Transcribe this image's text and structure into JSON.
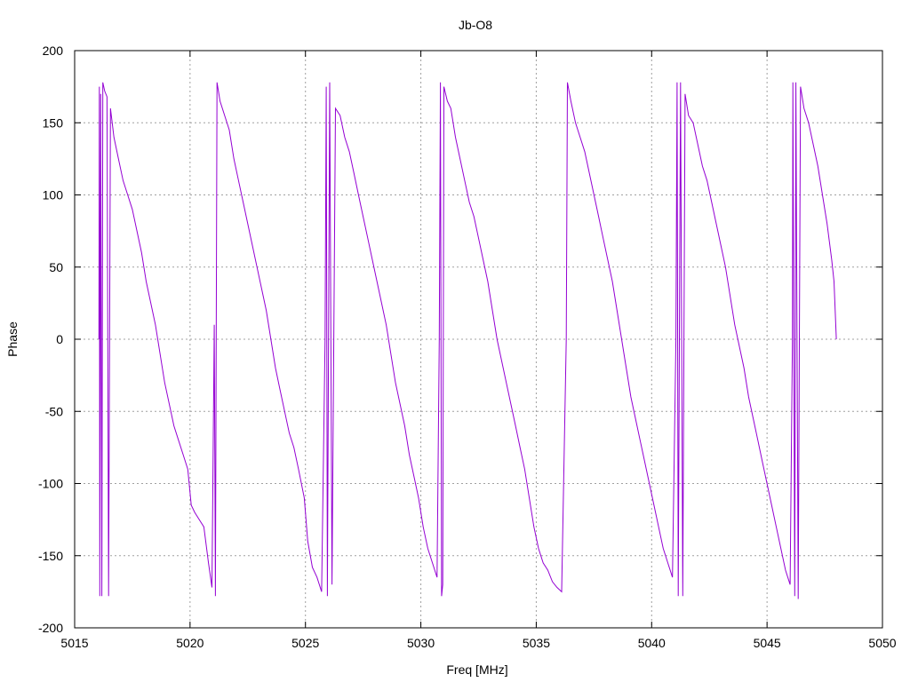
{
  "colors": {
    "series": "#9400d3",
    "grid": "#a0a0a0",
    "axis": "#000000",
    "background": "#ffffff"
  },
  "chart_data": {
    "type": "line",
    "title": "Jb-O8",
    "xlabel": "Freq [MHz]",
    "ylabel": "Phase",
    "xlim": [
      5015,
      5050
    ],
    "ylim": [
      -200,
      200
    ],
    "xticks": [
      "5015",
      "5020",
      "5025",
      "5030",
      "5035",
      "5040",
      "5045",
      "5050"
    ],
    "yticks": [
      "200",
      "150",
      "100",
      "50",
      "0",
      "-50",
      "-100",
      "-150",
      "-200"
    ],
    "grid": true,
    "legend": "none",
    "series": [
      {
        "color": "#9400d3",
        "points": [
          [
            5016.05,
            0
          ],
          [
            5016.07,
            175
          ],
          [
            5016.09,
            -178
          ],
          [
            5016.13,
            170
          ],
          [
            5016.18,
            -178
          ],
          [
            5016.22,
            178
          ],
          [
            5016.3,
            172
          ],
          [
            5016.4,
            168
          ],
          [
            5016.47,
            -178
          ],
          [
            5016.55,
            160
          ],
          [
            5016.7,
            140
          ],
          [
            5016.9,
            125
          ],
          [
            5017.1,
            110
          ],
          [
            5017.3,
            100
          ],
          [
            5017.5,
            90
          ],
          [
            5017.7,
            75
          ],
          [
            5017.9,
            60
          ],
          [
            5018.1,
            40
          ],
          [
            5018.3,
            25
          ],
          [
            5018.5,
            10
          ],
          [
            5018.7,
            -10
          ],
          [
            5018.9,
            -30
          ],
          [
            5019.1,
            -45
          ],
          [
            5019.3,
            -60
          ],
          [
            5019.5,
            -70
          ],
          [
            5019.7,
            -80
          ],
          [
            5019.9,
            -90
          ],
          [
            5020.05,
            -115
          ],
          [
            5020.2,
            -120
          ],
          [
            5020.4,
            -125
          ],
          [
            5020.6,
            -130
          ],
          [
            5020.8,
            -155
          ],
          [
            5020.95,
            -172
          ],
          [
            5021.05,
            10
          ],
          [
            5021.1,
            -178
          ],
          [
            5021.17,
            178
          ],
          [
            5021.3,
            165
          ],
          [
            5021.5,
            155
          ],
          [
            5021.7,
            145
          ],
          [
            5021.9,
            125
          ],
          [
            5022.1,
            110
          ],
          [
            5022.3,
            95
          ],
          [
            5022.5,
            80
          ],
          [
            5022.7,
            65
          ],
          [
            5022.9,
            50
          ],
          [
            5023.1,
            35
          ],
          [
            5023.3,
            20
          ],
          [
            5023.5,
            0
          ],
          [
            5023.7,
            -20
          ],
          [
            5023.9,
            -35
          ],
          [
            5024.1,
            -50
          ],
          [
            5024.3,
            -65
          ],
          [
            5024.5,
            -75
          ],
          [
            5024.7,
            -90
          ],
          [
            5024.95,
            -110
          ],
          [
            5025.1,
            -140
          ],
          [
            5025.3,
            -158
          ],
          [
            5025.5,
            -165
          ],
          [
            5025.7,
            -175
          ],
          [
            5025.85,
            0
          ],
          [
            5025.9,
            175
          ],
          [
            5025.95,
            -178
          ],
          [
            5026.05,
            178
          ],
          [
            5026.15,
            -170
          ],
          [
            5026.3,
            160
          ],
          [
            5026.5,
            155
          ],
          [
            5026.7,
            140
          ],
          [
            5026.9,
            130
          ],
          [
            5027.1,
            115
          ],
          [
            5027.3,
            100
          ],
          [
            5027.5,
            85
          ],
          [
            5027.7,
            70
          ],
          [
            5027.9,
            55
          ],
          [
            5028.1,
            40
          ],
          [
            5028.3,
            25
          ],
          [
            5028.5,
            10
          ],
          [
            5028.7,
            -10
          ],
          [
            5028.9,
            -30
          ],
          [
            5029.1,
            -45
          ],
          [
            5029.3,
            -60
          ],
          [
            5029.5,
            -80
          ],
          [
            5029.7,
            -95
          ],
          [
            5029.9,
            -110
          ],
          [
            5030.1,
            -130
          ],
          [
            5030.3,
            -145
          ],
          [
            5030.5,
            -155
          ],
          [
            5030.7,
            -165
          ],
          [
            5030.8,
            0
          ],
          [
            5030.85,
            178
          ],
          [
            5030.9,
            -178
          ],
          [
            5030.95,
            -170
          ],
          [
            5031.0,
            175
          ],
          [
            5031.15,
            165
          ],
          [
            5031.3,
            160
          ],
          [
            5031.5,
            140
          ],
          [
            5031.7,
            125
          ],
          [
            5031.9,
            110
          ],
          [
            5032.1,
            95
          ],
          [
            5032.3,
            85
          ],
          [
            5032.5,
            70
          ],
          [
            5032.7,
            55
          ],
          [
            5032.9,
            40
          ],
          [
            5033.1,
            20
          ],
          [
            5033.3,
            0
          ],
          [
            5033.5,
            -15
          ],
          [
            5033.7,
            -30
          ],
          [
            5033.9,
            -45
          ],
          [
            5034.1,
            -60
          ],
          [
            5034.3,
            -75
          ],
          [
            5034.5,
            -90
          ],
          [
            5034.7,
            -110
          ],
          [
            5034.9,
            -130
          ],
          [
            5035.1,
            -145
          ],
          [
            5035.3,
            -155
          ],
          [
            5035.5,
            -160
          ],
          [
            5035.7,
            -168
          ],
          [
            5035.9,
            -172
          ],
          [
            5036.1,
            -175
          ],
          [
            5036.3,
            0
          ],
          [
            5036.35,
            178
          ],
          [
            5036.5,
            165
          ],
          [
            5036.7,
            150
          ],
          [
            5036.9,
            140
          ],
          [
            5037.1,
            130
          ],
          [
            5037.3,
            115
          ],
          [
            5037.5,
            100
          ],
          [
            5037.7,
            85
          ],
          [
            5037.9,
            70
          ],
          [
            5038.1,
            55
          ],
          [
            5038.3,
            40
          ],
          [
            5038.5,
            20
          ],
          [
            5038.7,
            0
          ],
          [
            5038.9,
            -20
          ],
          [
            5039.1,
            -40
          ],
          [
            5039.3,
            -55
          ],
          [
            5039.5,
            -70
          ],
          [
            5039.7,
            -85
          ],
          [
            5039.9,
            -100
          ],
          [
            5040.1,
            -115
          ],
          [
            5040.3,
            -130
          ],
          [
            5040.5,
            -145
          ],
          [
            5040.7,
            -155
          ],
          [
            5040.9,
            -165
          ],
          [
            5041.05,
            0
          ],
          [
            5041.1,
            178
          ],
          [
            5041.15,
            -178
          ],
          [
            5041.25,
            178
          ],
          [
            5041.35,
            -178
          ],
          [
            5041.45,
            170
          ],
          [
            5041.6,
            155
          ],
          [
            5041.8,
            150
          ],
          [
            5042.0,
            135
          ],
          [
            5042.2,
            120
          ],
          [
            5042.4,
            110
          ],
          [
            5042.6,
            95
          ],
          [
            5042.8,
            80
          ],
          [
            5043.0,
            65
          ],
          [
            5043.2,
            50
          ],
          [
            5043.4,
            30
          ],
          [
            5043.6,
            10
          ],
          [
            5043.8,
            -5
          ],
          [
            5044.0,
            -20
          ],
          [
            5044.2,
            -40
          ],
          [
            5044.4,
            -55
          ],
          [
            5044.6,
            -70
          ],
          [
            5044.8,
            -85
          ],
          [
            5045.0,
            -100
          ],
          [
            5045.2,
            -115
          ],
          [
            5045.4,
            -130
          ],
          [
            5045.6,
            -145
          ],
          [
            5045.8,
            -160
          ],
          [
            5046.0,
            -170
          ],
          [
            5046.1,
            0
          ],
          [
            5046.12,
            178
          ],
          [
            5046.2,
            -178
          ],
          [
            5046.25,
            178
          ],
          [
            5046.35,
            -180
          ],
          [
            5046.45,
            175
          ],
          [
            5046.6,
            160
          ],
          [
            5046.8,
            150
          ],
          [
            5047.0,
            135
          ],
          [
            5047.2,
            120
          ],
          [
            5047.4,
            100
          ],
          [
            5047.6,
            80
          ],
          [
            5047.8,
            55
          ],
          [
            5047.9,
            40
          ],
          [
            5047.95,
            20
          ],
          [
            5048.0,
            0
          ]
        ]
      }
    ]
  }
}
